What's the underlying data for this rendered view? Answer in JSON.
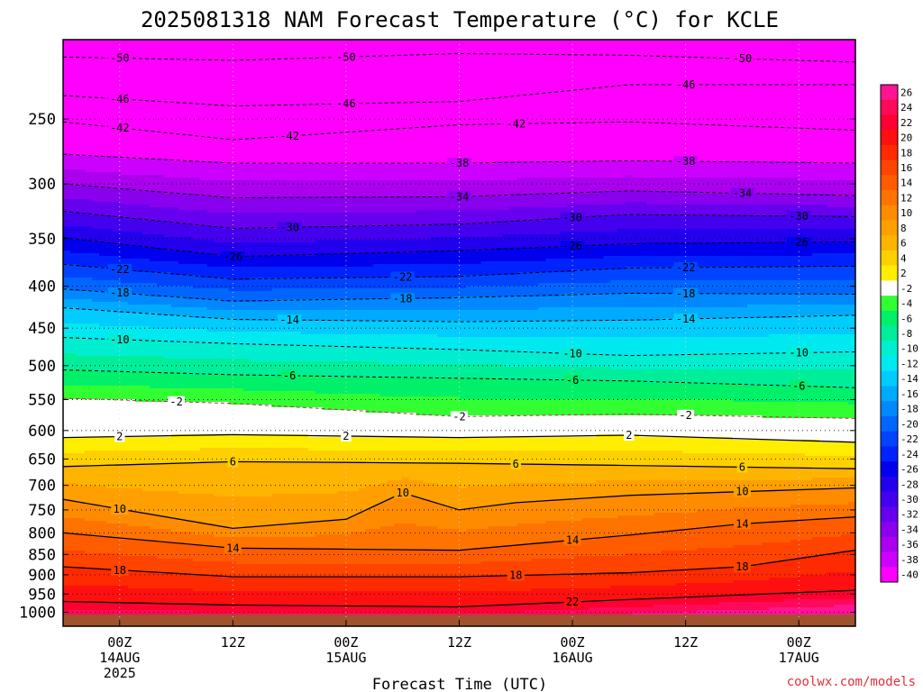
{
  "chart_data": {
    "type": "heatmap",
    "title": "2025081318 NAM Forecast Temperature (°C) for KCLE",
    "xlabel": "Forecast Time (UTC)",
    "ylabel": "",
    "y_axis": {
      "log_scale": true,
      "inverted": true,
      "range": [
        200,
        1040
      ],
      "ticks": [
        250,
        300,
        350,
        400,
        450,
        500,
        550,
        600,
        650,
        700,
        750,
        800,
        850,
        900,
        950,
        1000
      ]
    },
    "x_axis": {
      "range": [
        "2025-08-13T18:00",
        "2025-08-17T06:00"
      ],
      "ticks": [
        {
          "time": "2025-08-14T00:00",
          "lines": [
            "00Z",
            "14AUG",
            "2025"
          ]
        },
        {
          "time": "2025-08-14T12:00",
          "lines": [
            "12Z"
          ]
        },
        {
          "time": "2025-08-15T00:00",
          "lines": [
            "00Z",
            "15AUG"
          ]
        },
        {
          "time": "2025-08-15T12:00",
          "lines": [
            "12Z"
          ]
        },
        {
          "time": "2025-08-16T00:00",
          "lines": [
            "00Z",
            "16AUG"
          ]
        },
        {
          "time": "2025-08-16T12:00",
          "lines": [
            "12Z"
          ]
        },
        {
          "time": "2025-08-17T00:00",
          "lines": [
            "00Z",
            "17AUG"
          ]
        }
      ]
    },
    "grid": true,
    "colorbar": {
      "levels": [
        26,
        24,
        22,
        20,
        18,
        16,
        14,
        12,
        10,
        8,
        6,
        4,
        2,
        -2,
        -4,
        -6,
        -8,
        -10,
        -12,
        -14,
        -16,
        -18,
        -20,
        -22,
        -24,
        -26,
        -28,
        -30,
        -32,
        -34,
        -36,
        -38,
        -40
      ],
      "colors": [
        "#ff1493",
        "#ff0a5a",
        "#ff0030",
        "#ff1010",
        "#ff2a00",
        "#ff4400",
        "#ff5c00",
        "#ff7400",
        "#ff8c00",
        "#ffa000",
        "#ffb400",
        "#ffd000",
        "#ffee00",
        "#ffffff",
        "#32ff32",
        "#00f06a",
        "#00ee99",
        "#00eed0",
        "#00e8f0",
        "#00ccff",
        "#00aaff",
        "#0088ff",
        "#0066ff",
        "#0044ff",
        "#0022ff",
        "#0000ee",
        "#2200ee",
        "#4400ee",
        "#6600ee",
        "#8800ee",
        "#aa00ee",
        "#cc00ff",
        "#ff00ff"
      ]
    },
    "ground_color": "#a0522d",
    "isotherms": [
      {
        "value": -50,
        "times": [
          [
            "2025-08-13T18:00",
            210
          ],
          [
            "2025-08-14T12:00",
            212
          ],
          [
            "2025-08-15T12:00",
            208
          ],
          [
            "2025-08-16T06:00",
            209
          ],
          [
            "2025-08-17T06:00",
            213
          ]
        ],
        "labels": [
          "2025-08-14T00:00",
          "2025-08-15T00:00",
          "2025-08-16T18:00"
        ]
      },
      {
        "value": -46,
        "times": [
          [
            "2025-08-13T18:00",
            234
          ],
          [
            "2025-08-14T12:00",
            241
          ],
          [
            "2025-08-15T12:00",
            238
          ],
          [
            "2025-08-16T06:00",
            227
          ],
          [
            "2025-08-17T06:00",
            227
          ]
        ],
        "labels": [
          "2025-08-14T00:00",
          "2025-08-15T00:00",
          "2025-08-16T12:00"
        ]
      },
      {
        "value": -42,
        "times": [
          [
            "2025-08-13T18:00",
            252
          ],
          [
            "2025-08-14T12:00",
            265
          ],
          [
            "2025-08-15T12:00",
            254
          ],
          [
            "2025-08-16T06:00",
            252
          ],
          [
            "2025-08-17T06:00",
            258
          ]
        ],
        "labels": [
          "2025-08-14T00:00",
          "2025-08-14T18:00",
          "2025-08-15T18:00"
        ]
      },
      {
        "value": -38,
        "times": [
          [
            "2025-08-13T18:00",
            276
          ],
          [
            "2025-08-14T12:00",
            283
          ],
          [
            "2025-08-15T12:00",
            283
          ],
          [
            "2025-08-16T06:00",
            281
          ],
          [
            "2025-08-17T06:00",
            283
          ]
        ],
        "labels": [
          "2025-08-15T12:00",
          "2025-08-16T12:00"
        ]
      },
      {
        "value": -34,
        "times": [
          [
            "2025-08-13T18:00",
            300
          ],
          [
            "2025-08-14T12:00",
            312
          ],
          [
            "2025-08-15T12:00",
            311
          ],
          [
            "2025-08-16T06:00",
            306
          ],
          [
            "2025-08-17T06:00",
            310
          ]
        ],
        "labels": [
          "2025-08-15T12:00",
          "2025-08-16T18:00"
        ]
      },
      {
        "value": -30,
        "times": [
          [
            "2025-08-13T18:00",
            324
          ],
          [
            "2025-08-14T12:00",
            340
          ],
          [
            "2025-08-15T12:00",
            336
          ],
          [
            "2025-08-16T06:00",
            327
          ],
          [
            "2025-08-17T06:00",
            329
          ]
        ],
        "labels": [
          "2025-08-14T18:00",
          "2025-08-16T00:00",
          "2025-08-17T00:00"
        ]
      },
      {
        "value": -26,
        "times": [
          [
            "2025-08-13T18:00",
            349
          ],
          [
            "2025-08-14T12:00",
            368
          ],
          [
            "2025-08-15T12:00",
            362
          ],
          [
            "2025-08-16T06:00",
            355
          ],
          [
            "2025-08-17T06:00",
            353
          ]
        ],
        "labels": [
          "2025-08-14T12:00",
          "2025-08-16T00:00",
          "2025-08-17T00:00"
        ]
      },
      {
        "value": -22,
        "times": [
          [
            "2025-08-13T18:00",
            376
          ],
          [
            "2025-08-14T12:00",
            392
          ],
          [
            "2025-08-15T12:00",
            389
          ],
          [
            "2025-08-16T06:00",
            380
          ],
          [
            "2025-08-17T06:00",
            378
          ]
        ],
        "labels": [
          "2025-08-14T00:00",
          "2025-08-15T06:00",
          "2025-08-16T12:00"
        ]
      },
      {
        "value": -18,
        "times": [
          [
            "2025-08-13T18:00",
            403
          ],
          [
            "2025-08-14T12:00",
            417
          ],
          [
            "2025-08-15T12:00",
            413
          ],
          [
            "2025-08-16T06:00",
            408
          ],
          [
            "2025-08-17T06:00",
            409
          ]
        ],
        "labels": [
          "2025-08-14T00:00",
          "2025-08-15T06:00",
          "2025-08-16T12:00"
        ]
      },
      {
        "value": -14,
        "times": [
          [
            "2025-08-13T18:00",
            425
          ],
          [
            "2025-08-14T12:00",
            439
          ],
          [
            "2025-08-15T12:00",
            442
          ],
          [
            "2025-08-16T06:00",
            440
          ],
          [
            "2025-08-17T06:00",
            434
          ]
        ],
        "labels": [
          "2025-08-14T18:00",
          "2025-08-16T12:00"
        ]
      },
      {
        "value": -10,
        "times": [
          [
            "2025-08-13T18:00",
            462
          ],
          [
            "2025-08-14T12:00",
            470
          ],
          [
            "2025-08-15T12:00",
            478
          ],
          [
            "2025-08-16T06:00",
            486
          ],
          [
            "2025-08-17T06:00",
            481
          ]
        ],
        "labels": [
          "2025-08-14T00:00",
          "2025-08-16T00:00",
          "2025-08-17T00:00"
        ]
      },
      {
        "value": -6,
        "times": [
          [
            "2025-08-13T18:00",
            506
          ],
          [
            "2025-08-14T12:00",
            513
          ],
          [
            "2025-08-15T12:00",
            518
          ],
          [
            "2025-08-16T06:00",
            522
          ],
          [
            "2025-08-17T06:00",
            532
          ]
        ],
        "labels": [
          "2025-08-14T18:00",
          "2025-08-16T00:00",
          "2025-08-17T00:00"
        ]
      },
      {
        "value": -2,
        "times": [
          [
            "2025-08-13T18:00",
            548
          ],
          [
            "2025-08-14T12:00",
            556
          ],
          [
            "2025-08-15T12:00",
            577
          ],
          [
            "2025-08-16T06:00",
            573
          ],
          [
            "2025-08-17T06:00",
            580
          ]
        ],
        "labels": [
          "2025-08-14T06:00",
          "2025-08-15T12:00",
          "2025-08-16T12:00"
        ]
      },
      {
        "value": 2,
        "times": [
          [
            "2025-08-13T18:00",
            612
          ],
          [
            "2025-08-14T12:00",
            607
          ],
          [
            "2025-08-15T12:00",
            612
          ],
          [
            "2025-08-16T06:00",
            608
          ],
          [
            "2025-08-17T06:00",
            620
          ]
        ],
        "labels": [
          "2025-08-14T00:00",
          "2025-08-15T00:00",
          "2025-08-16T06:00"
        ]
      },
      {
        "value": 6,
        "times": [
          [
            "2025-08-13T18:00",
            664
          ],
          [
            "2025-08-14T12:00",
            655
          ],
          [
            "2025-08-15T12:00",
            658
          ],
          [
            "2025-08-16T06:00",
            662
          ],
          [
            "2025-08-17T06:00",
            668
          ]
        ],
        "labels": [
          "2025-08-14T12:00",
          "2025-08-15T18:00",
          "2025-08-16T18:00"
        ]
      },
      {
        "value": 10,
        "times": [
          [
            "2025-08-13T18:00",
            728
          ],
          [
            "2025-08-14T12:00",
            790
          ],
          [
            "2025-08-15T00:00",
            770
          ],
          [
            "2025-08-15T06:00",
            715
          ],
          [
            "2025-08-15T12:00",
            750
          ],
          [
            "2025-08-15T18:00",
            735
          ],
          [
            "2025-08-16T06:00",
            720
          ],
          [
            "2025-08-17T06:00",
            705
          ]
        ],
        "labels": [
          "2025-08-14T00:00",
          "2025-08-15T06:00",
          "2025-08-16T18:00"
        ]
      },
      {
        "value": 14,
        "times": [
          [
            "2025-08-13T18:00",
            800
          ],
          [
            "2025-08-14T12:00",
            835
          ],
          [
            "2025-08-15T12:00",
            840
          ],
          [
            "2025-08-16T06:00",
            805
          ],
          [
            "2025-08-16T18:00",
            780
          ],
          [
            "2025-08-17T06:00",
            765
          ]
        ],
        "labels": [
          "2025-08-14T12:00",
          "2025-08-16T00:00",
          "2025-08-16T18:00"
        ]
      },
      {
        "value": 18,
        "times": [
          [
            "2025-08-13T18:00",
            880
          ],
          [
            "2025-08-14T12:00",
            905
          ],
          [
            "2025-08-15T12:00",
            905
          ],
          [
            "2025-08-16T06:00",
            895
          ],
          [
            "2025-08-16T18:00",
            880
          ],
          [
            "2025-08-17T06:00",
            840
          ]
        ],
        "labels": [
          "2025-08-14T00:00",
          "2025-08-15T18:00",
          "2025-08-16T18:00"
        ]
      },
      {
        "value": 22,
        "times": [
          [
            "2025-08-13T18:00",
            970
          ],
          [
            "2025-08-14T12:00",
            980
          ],
          [
            "2025-08-15T12:00",
            985
          ],
          [
            "2025-08-16T06:00",
            965
          ],
          [
            "2025-08-17T06:00",
            940
          ]
        ],
        "labels": [
          "2025-08-16T00:00"
        ]
      }
    ]
  },
  "credit": "coolwx.com/models"
}
